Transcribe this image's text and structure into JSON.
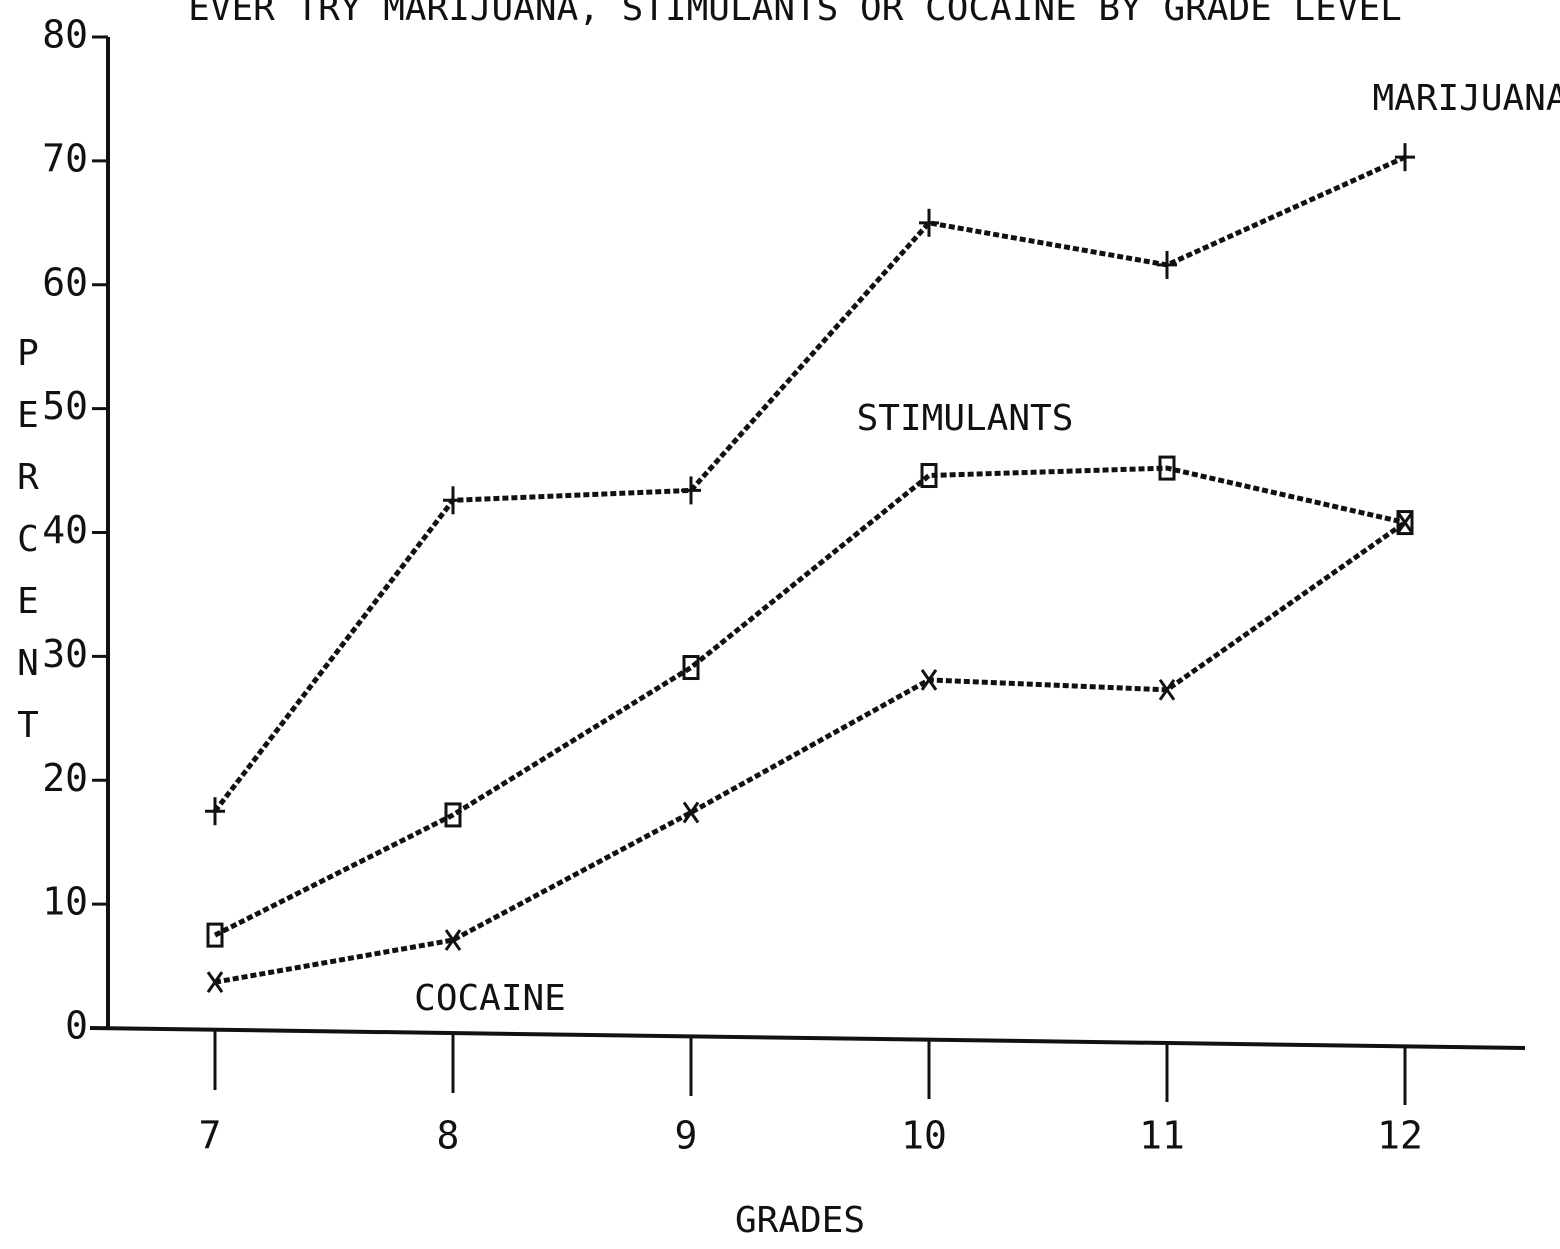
{
  "chart_data": {
    "type": "line",
    "title": "EVER TRY MARIJUANA, STIMULANTS OR COCAINE BY GRADE LEVEL",
    "x_label": "GRADES",
    "y_label": "PERCENT",
    "categories": [
      "7",
      "8",
      "9",
      "10",
      "11",
      "12"
    ],
    "series": [
      {
        "name": "MARIJUANA",
        "color": "#111111",
        "marker": "plus",
        "values": [
          17.5,
          42.6,
          43.4,
          65,
          61.6,
          70.3
        ]
      },
      {
        "name": "STIMULANTS",
        "color": "#111111",
        "marker": "square",
        "values": [
          7.5,
          17.2,
          29.1,
          44.6,
          45.2,
          40.8
        ]
      },
      {
        "name": "COCAINE",
        "color": "#111111",
        "marker": "x",
        "values": [
          3.7,
          7.1,
          17.4,
          28.1,
          27.3,
          40.8
        ]
      }
    ],
    "ylim": [
      0,
      80
    ],
    "yticks": [
      0,
      10,
      20,
      30,
      40,
      50,
      60,
      70,
      80
    ],
    "grid": false
  }
}
